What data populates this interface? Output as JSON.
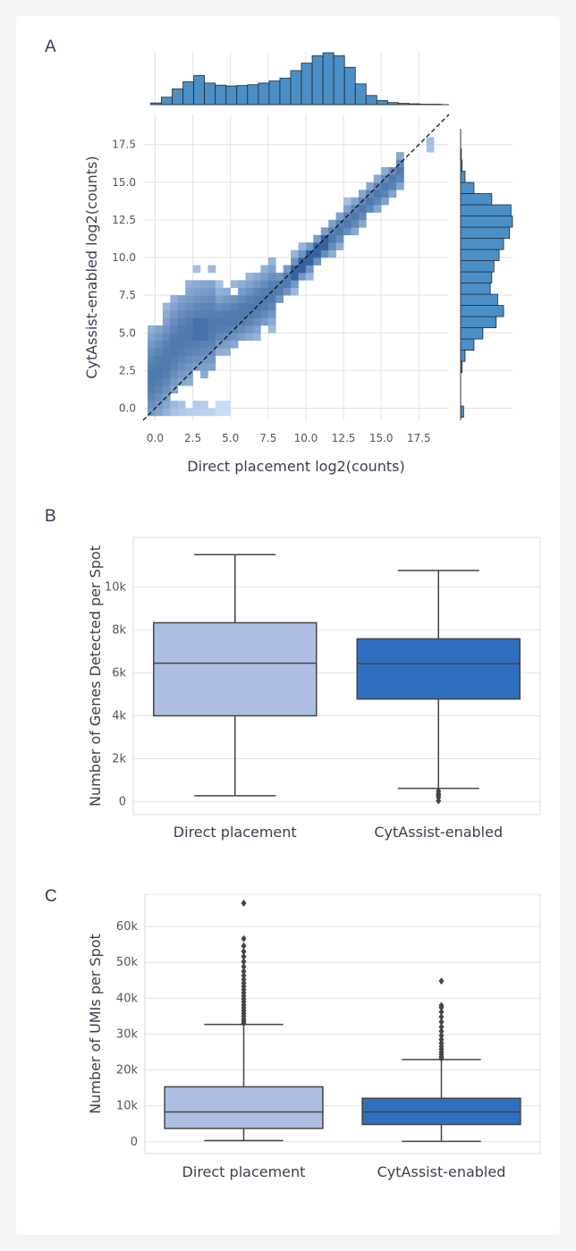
{
  "panels": {
    "a": "A",
    "b": "B",
    "c": "C"
  },
  "colors": {
    "hist_fill": "#4b8fc6",
    "hist_edge": "#1e2a3a",
    "density_low": "#c6dcf7",
    "density_high": "#1d4e8f",
    "box_direct": "#aebee2",
    "box_cytassist": "#2f6fbf",
    "grid": "#e2e2e2"
  },
  "chart_data": [
    {
      "id": "A",
      "type": "heatmap",
      "subtype": "joint density plot with marginal histograms",
      "xlabel": "Direct placement log2(counts)",
      "ylabel": "CytAssist-enabled log2(counts)",
      "xlim": [
        -0.8,
        19.5
      ],
      "ylim": [
        -0.8,
        19.5
      ],
      "x_ticks": [
        "0.0",
        "2.5",
        "5.0",
        "7.5",
        "10.0",
        "12.5",
        "15.0",
        "17.5"
      ],
      "y_ticks": [
        "0.0",
        "2.5",
        "5.0",
        "7.5",
        "10.0",
        "12.5",
        "15.0",
        "17.5"
      ],
      "reference_line": "y = x (dashed)",
      "density_ridge": [
        {
          "x": 0.5,
          "y": 2.8
        },
        {
          "x": 1.5,
          "y": 4.4
        },
        {
          "x": 2.5,
          "y": 5.1
        },
        {
          "x": 3.5,
          "y": 5.4
        },
        {
          "x": 5.0,
          "y": 5.9
        },
        {
          "x": 6.5,
          "y": 6.7
        },
        {
          "x": 7.5,
          "y": 7.4
        },
        {
          "x": 8.5,
          "y": 8.2
        },
        {
          "x": 9.5,
          "y": 9.3
        },
        {
          "x": 10.5,
          "y": 10.2
        },
        {
          "x": 11.5,
          "y": 11.1
        },
        {
          "x": 12.5,
          "y": 12.1
        },
        {
          "x": 13.5,
          "y": 13.0
        },
        {
          "x": 14.5,
          "y": 14.0
        },
        {
          "x": 15.5,
          "y": 14.9
        },
        {
          "x": 16.5,
          "y": 16.0
        }
      ],
      "marginal_x_counts": [
        4,
        18,
        38,
        55,
        70,
        52,
        47,
        45,
        46,
        48,
        52,
        57,
        64,
        82,
        100,
        118,
        125,
        118,
        90,
        50,
        22,
        10,
        5,
        3,
        2,
        1,
        1
      ],
      "marginal_y_counts": [
        4,
        0,
        0,
        0,
        2,
        6,
        18,
        30,
        48,
        58,
        50,
        40,
        42,
        45,
        52,
        58,
        66,
        70,
        68,
        42,
        18,
        6,
        2,
        1,
        0,
        0
      ]
    },
    {
      "id": "B",
      "type": "box",
      "categories": [
        "Direct placement",
        "CytAssist-enabled"
      ],
      "ylabel": "Number of Genes Detected per Spot",
      "xlabel": "",
      "ylim": [
        -600,
        12300
      ],
      "y_ticks": [
        "0",
        "2k",
        "4k",
        "6k",
        "8k",
        "10k"
      ],
      "boxes": [
        {
          "name": "Direct placement",
          "min": 280,
          "q1": 4000,
          "median": 6450,
          "q3": 8330,
          "max": 11500,
          "outliers": []
        },
        {
          "name": "CytAssist-enabled",
          "min": 620,
          "q1": 4780,
          "median": 6420,
          "q3": 7580,
          "max": 10760,
          "outliers": [
            500,
            380,
            300,
            200,
            40
          ]
        }
      ]
    },
    {
      "id": "C",
      "type": "box",
      "categories": [
        "Direct placement",
        "CytAssist-enabled"
      ],
      "ylabel": "Number of UMIs per Spot",
      "xlabel": "",
      "ylim": [
        -3300,
        69000
      ],
      "y_ticks": [
        "0",
        "10k",
        "20k",
        "30k",
        "40k",
        "50k",
        "60k"
      ],
      "boxes": [
        {
          "name": "Direct placement",
          "min": 300,
          "q1": 3700,
          "median": 8300,
          "q3": 15300,
          "max": 32700,
          "outliers": [
            33000,
            33600,
            34200,
            35000,
            35800,
            36500,
            37300,
            38100,
            39000,
            39800,
            40600,
            41500,
            42400,
            43300,
            44200,
            45200,
            46300,
            47500,
            48800,
            50200,
            51600,
            53000,
            54600,
            56600,
            66500
          ]
        },
        {
          "name": "CytAssist-enabled",
          "min": 100,
          "q1": 4800,
          "median": 8300,
          "q3": 12100,
          "max": 22900,
          "outliers": [
            23200,
            23700,
            24300,
            25000,
            25800,
            26600,
            27500,
            28500,
            29600,
            30800,
            32000,
            33400,
            34800,
            36200,
            37400,
            38000,
            44800
          ]
        }
      ]
    }
  ]
}
